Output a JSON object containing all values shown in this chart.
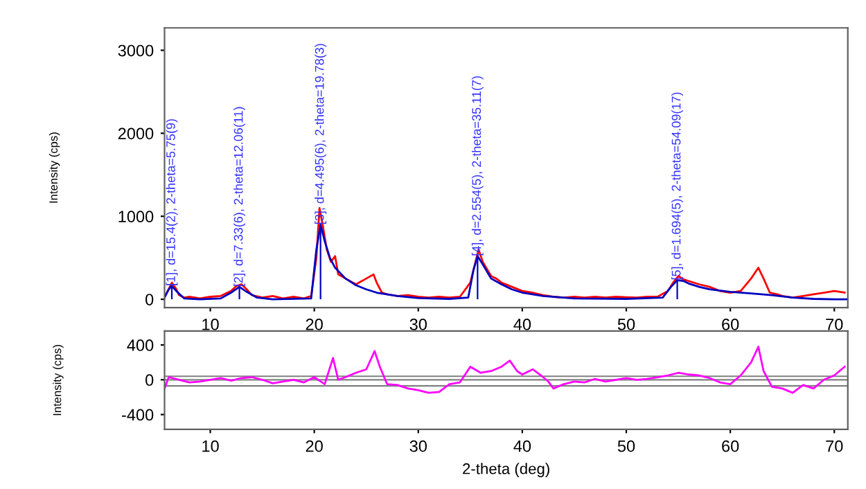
{
  "chart_data": [
    {
      "type": "line",
      "ylabel": "Intensity (cps)",
      "xlim": [
        5.6,
        71.3
      ],
      "ylim": [
        -100,
        3270
      ],
      "xticks": [
        10,
        20,
        30,
        40,
        50,
        60,
        70
      ],
      "yticks": [
        0,
        1000,
        2000,
        3000
      ],
      "grid": false,
      "legend": false,
      "marker": "none",
      "line_style": "solid",
      "series": [
        {
          "color": "#ff0000",
          "x": [
            5.6,
            6,
            6.3,
            6.7,
            7,
            7.5,
            8,
            9,
            10,
            11,
            12,
            12.5,
            13,
            13.5,
            14,
            15,
            16,
            17,
            18,
            19,
            19.7,
            20.2,
            20.5,
            20.8,
            21.2,
            21.6,
            22,
            22.3,
            23,
            24,
            25,
            25.7,
            26,
            26.5,
            27,
            28,
            29,
            30,
            31,
            32,
            33,
            34,
            35,
            35.5,
            35.8,
            36.2,
            37,
            37.5,
            38,
            39,
            40,
            41,
            42,
            43,
            44,
            45,
            46,
            47,
            48,
            49,
            50,
            51,
            52,
            53,
            54,
            54.5,
            55,
            55.5,
            56,
            57,
            58,
            59,
            60,
            61,
            62,
            62.7,
            63.2,
            63.8,
            64.5,
            65,
            66,
            67,
            68,
            69,
            70,
            71
          ],
          "values": [
            30,
            120,
            200,
            130,
            50,
            20,
            30,
            10,
            30,
            40,
            100,
            160,
            180,
            120,
            50,
            20,
            40,
            10,
            30,
            10,
            40,
            500,
            1100,
            900,
            600,
            450,
            520,
            300,
            250,
            180,
            250,
            300,
            200,
            80,
            60,
            40,
            50,
            30,
            20,
            30,
            20,
            30,
            200,
            450,
            600,
            450,
            280,
            250,
            200,
            150,
            100,
            80,
            50,
            30,
            20,
            30,
            20,
            30,
            20,
            30,
            25,
            20,
            30,
            30,
            100,
            200,
            280,
            240,
            220,
            180,
            150,
            100,
            80,
            100,
            250,
            380,
            250,
            80,
            60,
            40,
            20,
            40,
            60,
            80,
            100,
            80
          ]
        },
        {
          "color": "#0000c0",
          "x": [
            5.6,
            6,
            6.3,
            6.8,
            7.5,
            9,
            11,
            12,
            12.8,
            13.5,
            14.5,
            16,
            19.7,
            20.2,
            20.6,
            21,
            21.5,
            22,
            23,
            24,
            25,
            26,
            28,
            30,
            33,
            34.8,
            35.3,
            35.7,
            36.2,
            37,
            38,
            39,
            40,
            42,
            45,
            50,
            53.5,
            54.3,
            54.9,
            55.5,
            56,
            57,
            58,
            60,
            62,
            64,
            66,
            68,
            70,
            71.3
          ],
          "values": [
            20,
            120,
            160,
            90,
            10,
            0,
            10,
            80,
            150,
            90,
            20,
            0,
            10,
            600,
            900,
            700,
            500,
            380,
            250,
            170,
            120,
            80,
            40,
            15,
            5,
            20,
            350,
            520,
            420,
            250,
            180,
            120,
            80,
            40,
            10,
            5,
            20,
            150,
            230,
            220,
            190,
            150,
            120,
            90,
            70,
            50,
            20,
            5,
            0,
            0
          ]
        }
      ],
      "annotations": [
        {
          "text": "[1], d=15.4(2), 2-theta=5.75(9)",
          "x": 6.3,
          "y": 160
        },
        {
          "text": "[2], d=7.33(6), 2-theta=12.06(11)",
          "x": 12.8,
          "y": 150
        },
        {
          "text": "[3], d=4.495(6), 2-theta=19.78(3)",
          "x": 20.6,
          "y": 900
        },
        {
          "text": "[4], d=2.554(5), 2-theta=35.11(7)",
          "x": 35.7,
          "y": 520
        },
        {
          "text": "[5], d=1.694(5), 2-theta=54.09(17)",
          "x": 54.9,
          "y": 230
        }
      ]
    },
    {
      "type": "line",
      "ylabel": "Intensity (cps)",
      "xlabel": "2-theta (deg)",
      "xlim": [
        5.6,
        71.3
      ],
      "ylim": [
        -570,
        560
      ],
      "xticks": [
        10,
        20,
        30,
        40,
        50,
        60,
        70
      ],
      "yticks": [
        -400,
        0,
        400
      ],
      "grid": false,
      "legend": false,
      "marker": "none",
      "line_style": "solid",
      "ref_lines": [
        {
          "axis": "y",
          "value": 40,
          "color": "#808080"
        },
        {
          "axis": "y",
          "value": 0,
          "color": "#808080"
        },
        {
          "axis": "y",
          "value": -70,
          "color": "#808080"
        }
      ],
      "series": [
        {
          "color": "#ff00ff",
          "x": [
            5.6,
            6,
            7,
            8,
            9,
            10,
            11,
            12,
            13,
            14,
            15,
            16,
            17,
            18,
            19,
            20,
            21,
            21.8,
            22.3,
            23,
            24,
            25,
            25.8,
            26.3,
            27,
            28,
            29,
            30,
            31,
            32,
            33,
            34,
            35,
            36,
            37,
            38,
            38.8,
            39.5,
            40,
            41,
            41.8,
            42.5,
            43,
            44,
            45,
            46,
            47,
            48,
            49,
            50,
            51,
            52,
            53,
            54,
            55,
            56,
            57,
            58,
            59,
            60,
            61,
            62,
            62.7,
            63.2,
            64,
            65,
            66,
            67,
            68,
            69,
            70,
            71
          ],
          "values": [
            -100,
            30,
            0,
            -30,
            -20,
            0,
            20,
            -10,
            20,
            30,
            0,
            -40,
            -20,
            0,
            -30,
            30,
            -50,
            250,
            0,
            30,
            80,
            120,
            330,
            150,
            -50,
            -60,
            -100,
            -120,
            -150,
            -140,
            -50,
            -30,
            150,
            80,
            100,
            150,
            220,
            100,
            60,
            120,
            50,
            -20,
            -100,
            -50,
            -20,
            -30,
            10,
            -20,
            0,
            20,
            0,
            10,
            30,
            50,
            80,
            60,
            50,
            20,
            -30,
            -50,
            50,
            200,
            380,
            100,
            -80,
            -100,
            -150,
            -60,
            -100,
            0,
            50,
            150
          ]
        }
      ]
    }
  ]
}
